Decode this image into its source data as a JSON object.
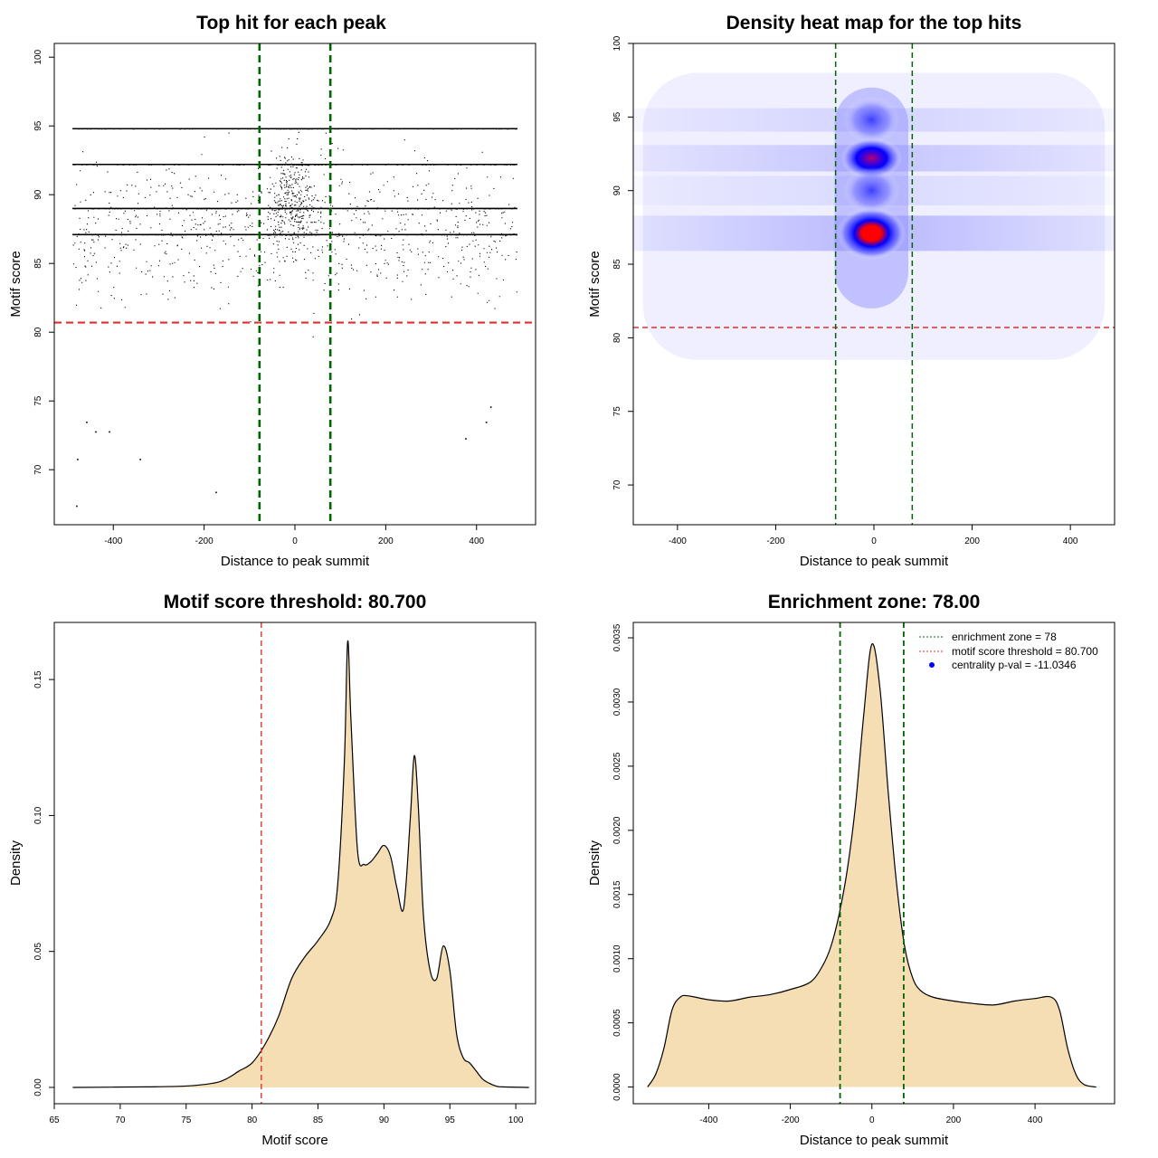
{
  "colors": {
    "threshold_red": "#e03030",
    "zone_green": "#006400",
    "density_fill": "#f5deb3",
    "heat_low": "#ffffff",
    "heat_mid": "#0000ff",
    "heat_high": "#ff0000"
  },
  "chart_data": [
    {
      "type": "scatter",
      "title": "Top hit for each peak",
      "xlabel": "Distance to peak summit",
      "ylabel": "Motif score",
      "xlim": [
        -530,
        530
      ],
      "ylim": [
        66,
        101
      ],
      "xticks": [
        -400,
        -200,
        0,
        200,
        400
      ],
      "xtick_labels": [
        "-400",
        "-200",
        "0",
        "200",
        "400"
      ],
      "yticks": [
        70,
        75,
        80,
        85,
        90,
        95,
        100
      ],
      "ytick_labels": [
        "70",
        "75",
        "80",
        "85",
        "90",
        "95",
        "100"
      ],
      "x_range": [
        -490,
        490
      ],
      "dense_score_lines": [
        87.1,
        92.2,
        94.8,
        89.0
      ],
      "outlier_points": [
        {
          "x": -482,
          "y": 67.4
        },
        {
          "x": -480,
          "y": 70.8
        },
        {
          "x": -342,
          "y": 70.8
        },
        {
          "x": -175,
          "y": 68.4
        },
        {
          "x": -440,
          "y": 72.8
        },
        {
          "x": -410,
          "y": 72.8
        },
        {
          "x": 375,
          "y": 72.3
        },
        {
          "x": 420,
          "y": 73.5
        },
        {
          "x": -460,
          "y": 73.5
        },
        {
          "x": 430,
          "y": 74.6
        }
      ],
      "hlines": [
        {
          "y": 80.7,
          "color": "#e03030"
        }
      ],
      "vlines": [
        {
          "x": -78,
          "color": "#006400"
        },
        {
          "x": 78,
          "color": "#006400"
        }
      ]
    },
    {
      "type": "heatmap",
      "title": "Density heat map for the top hits",
      "xlabel": "Distance to peak summit",
      "ylabel": "Motif score",
      "xlim": [
        -490,
        490
      ],
      "ylim": [
        67.3,
        100
      ],
      "xticks": [
        -400,
        -200,
        0,
        200,
        400
      ],
      "xtick_labels": [
        "-400",
        "-200",
        "0",
        "200",
        "400"
      ],
      "yticks": [
        70,
        75,
        80,
        85,
        90,
        95,
        100
      ],
      "ytick_labels": [
        "70",
        "75",
        "80",
        "85",
        "90",
        "95",
        "100"
      ],
      "hotspots": [
        {
          "x": -5,
          "y": 87.1,
          "intensity": "high"
        },
        {
          "x": -5,
          "y": 92.2,
          "intensity": "medium-high"
        },
        {
          "x": -5,
          "y": 90.0,
          "intensity": "medium"
        },
        {
          "x": -5,
          "y": 94.8,
          "intensity": "medium"
        }
      ],
      "hlines": [
        {
          "y": 80.7,
          "color": "#e03030"
        }
      ],
      "vlines": [
        {
          "x": -78,
          "color": "#006400"
        },
        {
          "x": 78,
          "color": "#006400"
        }
      ]
    },
    {
      "type": "area",
      "title": "Motif score threshold: 80.700",
      "xlabel": "Motif score",
      "ylabel": "Density",
      "xlim": [
        65,
        101.5
      ],
      "ylim": [
        -0.006,
        0.171
      ],
      "xticks": [
        65,
        70,
        75,
        80,
        85,
        90,
        95,
        100
      ],
      "xtick_labels": [
        "65",
        "70",
        "75",
        "80",
        "85",
        "90",
        "95",
        "100"
      ],
      "yticks": [
        0,
        0.05,
        0.1,
        0.15
      ],
      "ytick_labels": [
        "0.00",
        "0.05",
        "0.10",
        "0.15"
      ],
      "x": [
        66.4,
        72,
        75,
        77,
        78,
        79,
        80,
        81,
        82,
        83,
        84,
        85,
        86,
        86.5,
        87,
        87.25,
        87.5,
        88,
        88.5,
        89,
        89.5,
        90,
        90.5,
        91,
        91.5,
        92,
        92.3,
        92.6,
        93,
        93.5,
        94,
        94.5,
        95,
        95.5,
        96,
        96.5,
        97,
        97.5,
        98,
        98.5,
        99,
        101
      ],
      "values": [
        0,
        0.0002,
        0.0005,
        0.0015,
        0.003,
        0.006,
        0.009,
        0.016,
        0.026,
        0.04,
        0.048,
        0.054,
        0.062,
        0.075,
        0.12,
        0.164,
        0.135,
        0.087,
        0.082,
        0.083,
        0.086,
        0.089,
        0.085,
        0.073,
        0.066,
        0.099,
        0.122,
        0.104,
        0.063,
        0.043,
        0.04,
        0.052,
        0.043,
        0.02,
        0.011,
        0.009,
        0.006,
        0.003,
        0.0015,
        0.0005,
        0.0002,
        0
      ],
      "vlines": [
        {
          "x": 80.7,
          "color": "#e03030"
        }
      ]
    },
    {
      "type": "area",
      "title": "Enrichment zone: 78.00",
      "xlabel": "Distance to peak summit",
      "ylabel": "Density",
      "xlim": [
        -585,
        595
      ],
      "ylim": [
        -0.00013,
        0.00362
      ],
      "xticks": [
        -400,
        -200,
        0,
        200,
        400
      ],
      "xtick_labels": [
        "-400",
        "-200",
        "0",
        "200",
        "400"
      ],
      "yticks": [
        0,
        0.0005,
        0.001,
        0.0015,
        0.002,
        0.0025,
        0.003,
        0.0035
      ],
      "ytick_labels": [
        "0.0000",
        "0.0005",
        "0.0010",
        "0.0015",
        "0.0020",
        "0.0025",
        "0.0030",
        "0.0035"
      ],
      "x": [
        -550,
        -530,
        -510,
        -490,
        -470,
        -450,
        -400,
        -350,
        -300,
        -250,
        -200,
        -150,
        -120,
        -100,
        -80,
        -60,
        -40,
        -20,
        0,
        20,
        40,
        60,
        80,
        100,
        120,
        150,
        200,
        250,
        300,
        350,
        400,
        440,
        460,
        480,
        500,
        520,
        550
      ],
      "values": [
        0.0,
        0.0001,
        0.0003,
        0.0006,
        0.0007,
        0.00071,
        0.00068,
        0.00067,
        0.0007,
        0.00072,
        0.00076,
        0.00082,
        0.00095,
        0.0011,
        0.00135,
        0.0017,
        0.0022,
        0.0029,
        0.00345,
        0.0031,
        0.0023,
        0.0016,
        0.0011,
        0.00085,
        0.00075,
        0.0007,
        0.00067,
        0.00065,
        0.00064,
        0.00067,
        0.00069,
        0.0007,
        0.0006,
        0.0003,
        0.0001,
        2e-05,
        0.0
      ],
      "vlines": [
        {
          "x": -78,
          "color": "#006400"
        },
        {
          "x": 78,
          "color": "#006400"
        }
      ],
      "legend": {
        "position": "top-right",
        "entries": [
          {
            "label": "enrichment zone = 78",
            "color": "#006400",
            "style": "dotted-line"
          },
          {
            "label": "motif score threshold = 80.700",
            "color": "#e03030",
            "style": "dotted-line"
          },
          {
            "label": "centrality p-val = -11.0346",
            "color": "#0000ff",
            "style": "point"
          }
        ]
      }
    }
  ]
}
